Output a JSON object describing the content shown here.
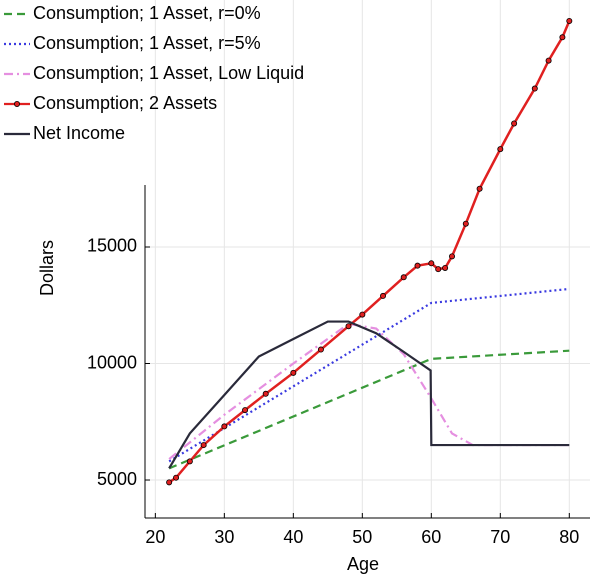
{
  "chart_data": {
    "type": "line",
    "x_label": "Age",
    "y_label": "Dollars",
    "xlim": [
      18.5,
      83
    ],
    "ylim": [
      3370,
      25600
    ],
    "xticks": [
      20,
      30,
      40,
      50,
      60,
      70,
      80
    ],
    "yticks": [
      5000,
      10000,
      15000
    ],
    "grid": true,
    "legend": "top-left",
    "series": [
      {
        "name": "Consumption; 1 Asset, r=0%",
        "color": "#3a9a3a",
        "style": "dashed",
        "marker": false,
        "x": [
          22,
          60,
          80
        ],
        "values": [
          5500,
          10200,
          10550
        ]
      },
      {
        "name": "Consumption; 1 Asset, r=5%",
        "color": "#3a3ae0",
        "style": "dotted",
        "marker": false,
        "x": [
          22,
          60,
          80
        ],
        "values": [
          5800,
          12600,
          13200
        ]
      },
      {
        "name": "Consumption; 1 Asset, Low Liquid",
        "color": "#e58fe0",
        "style": "dashdot",
        "marker": false,
        "x": [
          22,
          30,
          40,
          48,
          52,
          56,
          60,
          63,
          66,
          80
        ],
        "values": [
          5900,
          7800,
          10000,
          11700,
          11500,
          10400,
          8500,
          7000,
          6500,
          6500
        ]
      },
      {
        "name": "Consumption; 2 Assets",
        "color": "#e02020",
        "style": "solid",
        "marker": true,
        "x": [
          22,
          23,
          25,
          27,
          30,
          33,
          36,
          40,
          44,
          48,
          50,
          53,
          56,
          58,
          60,
          61,
          62,
          63,
          65,
          67,
          70,
          72,
          75,
          77,
          79,
          80
        ],
        "values": [
          4900,
          5100,
          5800,
          6500,
          7300,
          8000,
          8700,
          9600,
          10600,
          11600,
          12100,
          12900,
          13700,
          14200,
          14300,
          14050,
          14100,
          14600,
          16000,
          17500,
          19200,
          20300,
          21800,
          23000,
          24000,
          24700
        ]
      },
      {
        "name": "Net Income",
        "color": "#2a2a3a",
        "style": "solid",
        "marker": false,
        "x": [
          22,
          25,
          30,
          35,
          40,
          45,
          48,
          52,
          56,
          59.9,
          60,
          80
        ],
        "values": [
          5500,
          7000,
          8650,
          10300,
          11050,
          11800,
          11800,
          11300,
          10500,
          9700,
          6500,
          6500
        ]
      }
    ]
  }
}
